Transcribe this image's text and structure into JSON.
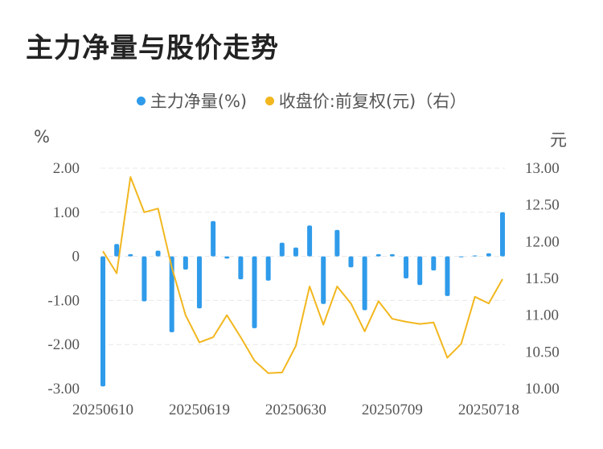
{
  "title": "主力净量与股价走势",
  "legend": {
    "net": "主力净量(%)",
    "price": "收盘价:前复权(元)（右）"
  },
  "units": {
    "left": "%",
    "right": "元"
  },
  "colors": {
    "bar": "#2f9bea",
    "line": "#f2b71f",
    "grid": "#e8e8e8"
  },
  "chart_data": {
    "type": "bar+line",
    "title": "主力净量与股价走势",
    "x_tick_labels": [
      "20250610",
      "20250619",
      "20250630",
      "20250709",
      "20250718"
    ],
    "x_tick_index": [
      0,
      7,
      14,
      21,
      28
    ],
    "y_left": {
      "label": "%",
      "ylim": [
        -3,
        2
      ],
      "ticks": [
        "2.00",
        "1.00",
        "0",
        "-1.00",
        "-2.00",
        "-3.00"
      ],
      "tick_values": [
        2,
        1,
        0,
        -1,
        -2,
        -3
      ]
    },
    "y_right": {
      "label": "元",
      "ylim": [
        10,
        13
      ],
      "ticks": [
        "13.00",
        "12.50",
        "12.00",
        "11.50",
        "11.00",
        "10.50",
        "10.00"
      ],
      "tick_values": [
        13,
        12.5,
        12,
        11.5,
        11,
        10.5,
        10
      ]
    },
    "series": [
      {
        "name": "主力净量(%)",
        "type": "bar",
        "axis": "left",
        "values": [
          -2.95,
          0.28,
          0.05,
          -1.02,
          0.13,
          -1.72,
          -0.3,
          -1.18,
          0.8,
          -0.05,
          -0.52,
          -1.63,
          -0.55,
          0.31,
          0.2,
          0.7,
          -1.08,
          0.6,
          -0.25,
          -1.22,
          0.05,
          0.05,
          -0.5,
          -0.65,
          -0.32,
          -0.9,
          -0.02,
          0.02,
          0.07,
          1.0
        ]
      },
      {
        "name": "收盘价:前复权(元)（右）",
        "type": "line",
        "axis": "right",
        "values": [
          11.87,
          11.57,
          12.88,
          12.4,
          12.45,
          11.65,
          11.0,
          10.63,
          10.7,
          11.0,
          10.7,
          10.38,
          10.21,
          10.22,
          10.58,
          11.39,
          10.87,
          11.39,
          11.16,
          10.78,
          11.19,
          10.95,
          10.91,
          10.88,
          10.9,
          10.42,
          10.61,
          11.25,
          11.16,
          11.49
        ]
      }
    ]
  }
}
